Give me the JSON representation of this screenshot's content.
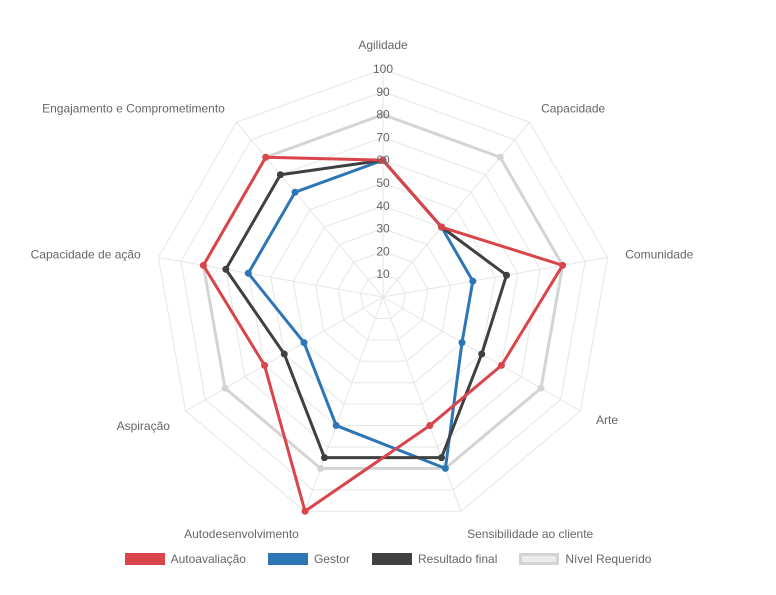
{
  "chart_data": {
    "type": "radar",
    "categories": [
      "Agilidade",
      "Capacidade",
      "Comunidade",
      "Arte",
      "Sensibilidade ao cliente",
      "Autodesenvolvimento",
      "Aspiração",
      "Capacidade de ação",
      "Engajamento e Comprometimento"
    ],
    "ticks": [
      "10",
      "20",
      "30",
      "40",
      "50",
      "60",
      "70",
      "80",
      "90",
      "100"
    ],
    "rlim": [
      0,
      100
    ],
    "grid": true,
    "legend_position": "bottom",
    "series": [
      {
        "name": "Autoavaliação",
        "color": "#d9454a",
        "values": [
          60,
          40,
          80,
          60,
          60,
          100,
          60,
          80,
          80
        ]
      },
      {
        "name": "Gestor",
        "color": "#2e75b6",
        "values": [
          60,
          40,
          40,
          40,
          80,
          60,
          40,
          60,
          60
        ]
      },
      {
        "name": "Resultado final",
        "color": "#404040",
        "values": [
          60,
          40,
          55,
          50,
          75,
          75,
          50,
          70,
          70
        ]
      },
      {
        "name": "Nível Requerido",
        "color": "#d4d4d4",
        "values": [
          80,
          80,
          80,
          80,
          80,
          80,
          80,
          80,
          80
        ]
      }
    ]
  }
}
